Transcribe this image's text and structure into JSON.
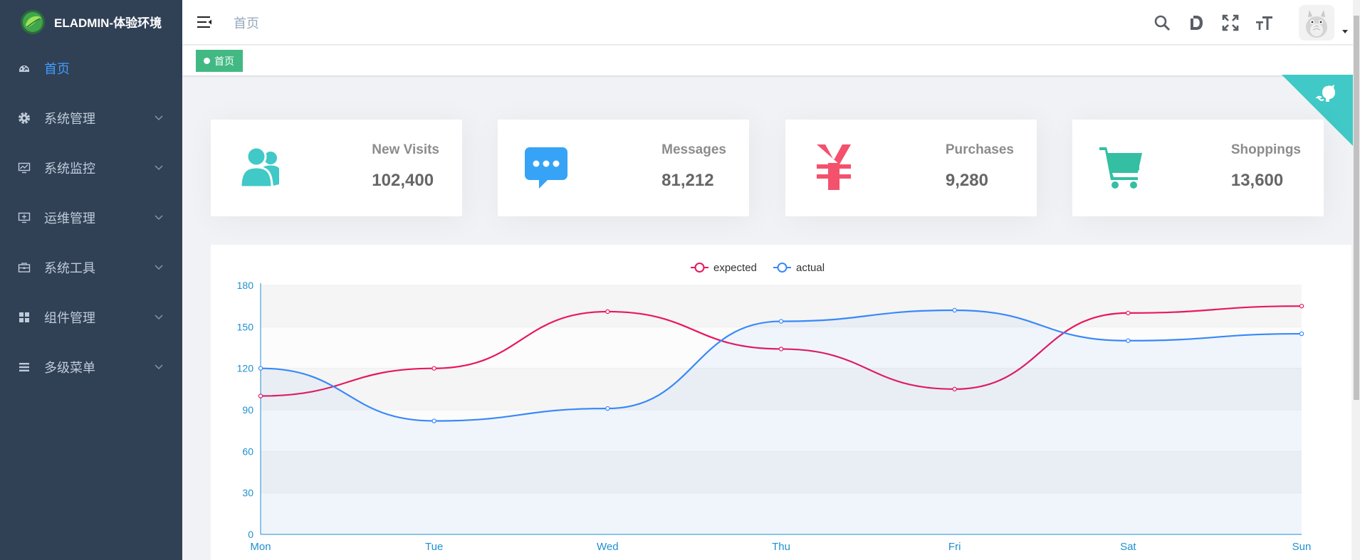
{
  "app": {
    "title": "ELADMIN-体验环境"
  },
  "sidebar": {
    "items": [
      {
        "label": "首页",
        "icon": "dashboard-icon",
        "active": true
      },
      {
        "label": "系统管理",
        "icon": "gear-icon"
      },
      {
        "label": "系统监控",
        "icon": "monitor-chart-icon"
      },
      {
        "label": "运维管理",
        "icon": "server-monitor-icon"
      },
      {
        "label": "系统工具",
        "icon": "toolbox-icon"
      },
      {
        "label": "组件管理",
        "icon": "grid-icon"
      },
      {
        "label": "多级菜单",
        "icon": "list-icon"
      }
    ]
  },
  "header": {
    "breadcrumb": "首页",
    "icons": [
      "search-icon",
      "doc-icon",
      "fullscreen-icon",
      "font-size-icon"
    ]
  },
  "tags": [
    {
      "label": "首页",
      "active": true
    }
  ],
  "colors": {
    "sidebar_bg": "#304156",
    "accent": "#409eff",
    "tag": "#42b983",
    "visits": "#40c9c6",
    "messages": "#36a3f7",
    "purchases": "#f4516c",
    "shoppings": "#34bfa3",
    "expected": "#e8175d",
    "actual": "#3888fa"
  },
  "panels": [
    {
      "label": "New Visits",
      "value": "102,400",
      "icon": "people-icon"
    },
    {
      "label": "Messages",
      "value": "81,212",
      "icon": "message-icon"
    },
    {
      "label": "Purchases",
      "value": "9,280",
      "icon": "yen-icon"
    },
    {
      "label": "Shoppings",
      "value": "13,600",
      "icon": "shopping-cart-icon"
    }
  ],
  "chart_data": {
    "type": "line",
    "categories": [
      "Mon",
      "Tue",
      "Wed",
      "Thu",
      "Fri",
      "Sat",
      "Sun"
    ],
    "series": [
      {
        "name": "expected",
        "values": [
          100,
          120,
          161,
          134,
          105,
          160,
          165
        ]
      },
      {
        "name": "actual",
        "values": [
          120,
          82,
          91,
          154,
          162,
          140,
          145
        ]
      }
    ],
    "y_ticks": [
      0,
      30,
      60,
      90,
      120,
      150,
      180
    ],
    "ylim": [
      0,
      180
    ],
    "smooth": true,
    "legend": "top-center",
    "title": "",
    "xlabel": "",
    "ylabel": ""
  }
}
